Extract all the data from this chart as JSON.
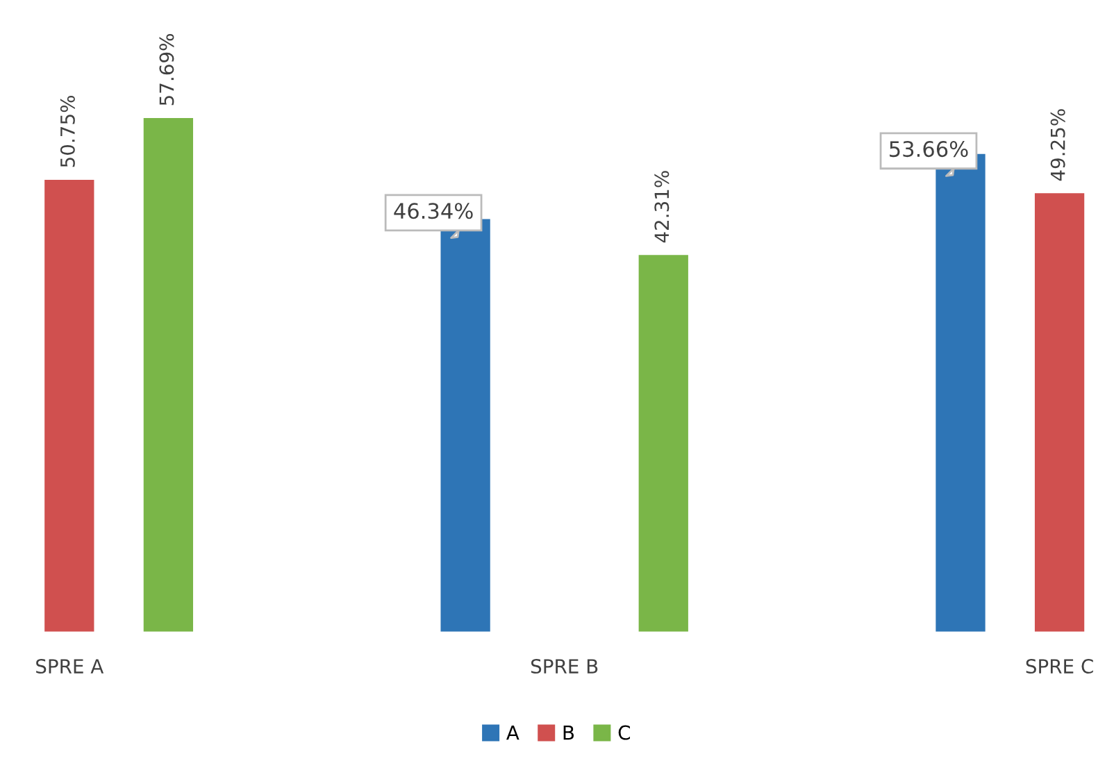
{
  "chart_data": {
    "type": "bar",
    "categories": [
      "SPRE A",
      "SPRE B",
      "SPRE C"
    ],
    "series": [
      {
        "name": "A",
        "color": "#2e75b6",
        "values": [
          null,
          46.34,
          53.66
        ],
        "value_labels": [
          null,
          "46.34%",
          "53.66%"
        ]
      },
      {
        "name": "B",
        "color": "#d0504f",
        "values": [
          50.75,
          null,
          49.25
        ],
        "value_labels": [
          "50.75%",
          null,
          "49.25%"
        ]
      },
      {
        "name": "C",
        "color": "#7ab648",
        "values": [
          57.69,
          42.31,
          null
        ],
        "value_labels": [
          "57.69%",
          "42.31%",
          null
        ]
      }
    ],
    "legend": "bottom",
    "grid": false
  }
}
